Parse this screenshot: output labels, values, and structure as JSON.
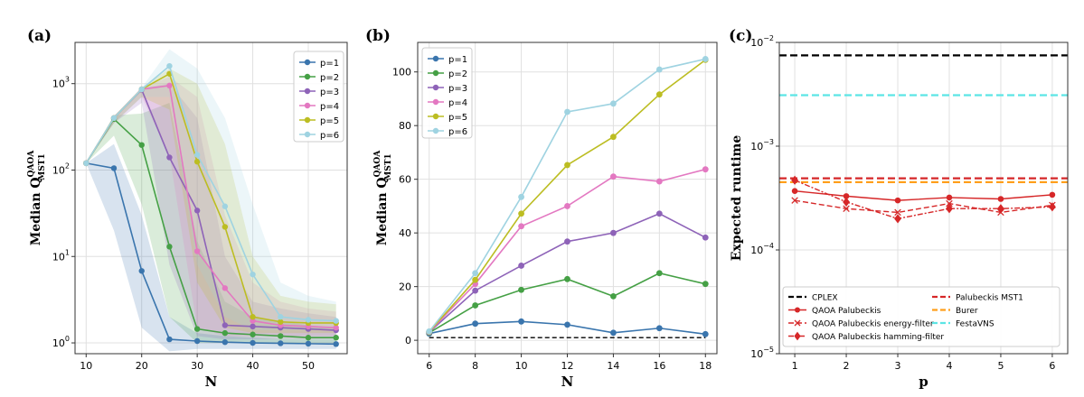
{
  "chart_data": [
    {
      "panel_label": "(a)",
      "type": "line",
      "xlabel": "N",
      "ylabel": "Median Q",
      "ylabel_sup": "QAOA",
      "ylabel_sub": "MST1",
      "yscale": "log",
      "xlim": [
        8,
        57
      ],
      "ylim": [
        0.75,
        3000
      ],
      "xticks": [
        10,
        20,
        30,
        40,
        50
      ],
      "yticks": [
        {
          "v": 1,
          "exp": "0"
        },
        {
          "v": 10,
          "exp": "1"
        },
        {
          "v": 100,
          "exp": "2"
        },
        {
          "v": 1000,
          "exp": "3"
        }
      ],
      "legend_position": "top-right",
      "series": [
        {
          "name": "p=1",
          "color": "#3a75ad",
          "x": [
            10,
            15,
            20,
            25,
            30,
            35,
            40,
            45,
            50,
            55
          ],
          "values": [
            120,
            105,
            6.8,
            1.1,
            1.05,
            1.02,
            1.0,
            0.99,
            0.98,
            0.97
          ],
          "band_low": [
            120,
            20,
            1.5,
            0.8,
            0.85,
            0.85,
            0.85,
            0.85,
            0.85,
            0.85
          ],
          "band_high": [
            120,
            200,
            30,
            2.0,
            1.3,
            1.2,
            1.15,
            1.1,
            1.1,
            1.1
          ]
        },
        {
          "name": "p=2",
          "color": "#45a045",
          "x": [
            10,
            15,
            20,
            25,
            30,
            35,
            40,
            45,
            50,
            55
          ],
          "values": [
            120,
            390,
            195,
            13,
            1.45,
            1.3,
            1.25,
            1.2,
            1.15,
            1.15
          ],
          "band_low": [
            120,
            250,
            40,
            2.0,
            1.0,
            1.0,
            1.0,
            1.0,
            1.0,
            1.0
          ],
          "band_high": [
            120,
            430,
            450,
            600,
            15,
            3,
            2.0,
            1.8,
            1.6,
            1.5
          ]
        },
        {
          "name": "p=3",
          "color": "#8e63b8",
          "x": [
            10,
            15,
            20,
            25,
            30,
            35,
            40,
            45,
            50,
            55
          ],
          "values": [
            120,
            400,
            850,
            140,
            34,
            1.6,
            1.55,
            1.5,
            1.45,
            1.4
          ],
          "band_low": [
            120,
            350,
            600,
            8,
            1.2,
            1.1,
            1.1,
            1.1,
            1.1,
            1.1
          ],
          "band_high": [
            120,
            420,
            900,
            1000,
            400,
            10,
            3,
            2.5,
            2.2,
            2.0
          ]
        },
        {
          "name": "p=4",
          "color": "#e378c1",
          "x": [
            10,
            15,
            20,
            25,
            30,
            35,
            40,
            45,
            50,
            55
          ],
          "values": [
            120,
            400,
            860,
            950,
            11.5,
            4.3,
            1.8,
            1.6,
            1.55,
            1.5
          ],
          "band_low": [
            120,
            350,
            700,
            150,
            1.5,
            1.2,
            1.2,
            1.2,
            1.2,
            1.2
          ],
          "band_high": [
            120,
            420,
            900,
            1200,
            700,
            30,
            5,
            3,
            2.5,
            2.3
          ]
        },
        {
          "name": "p=5",
          "color": "#bcbd22",
          "x": [
            10,
            15,
            20,
            25,
            30,
            35,
            40,
            45,
            50,
            55
          ],
          "values": [
            120,
            400,
            860,
            1300,
            125,
            22,
            2.0,
            1.75,
            1.7,
            1.7
          ],
          "band_low": [
            120,
            350,
            700,
            500,
            5,
            1.5,
            1.3,
            1.3,
            1.3,
            1.3
          ],
          "band_high": [
            120,
            420,
            900,
            1500,
            1000,
            200,
            10,
            3.5,
            3,
            2.8
          ]
        },
        {
          "name": "p=6",
          "color": "#9fd3e1",
          "x": [
            10,
            15,
            20,
            25,
            30,
            35,
            40,
            45,
            50,
            55
          ],
          "values": [
            120,
            400,
            860,
            1600,
            150,
            38,
            6.2,
            2.0,
            1.85,
            1.8
          ],
          "band_low": [
            120,
            350,
            700,
            700,
            8,
            2,
            1.4,
            1.4,
            1.4,
            1.4
          ],
          "band_high": [
            120,
            420,
            900,
            2500,
            1500,
            400,
            40,
            5,
            3.5,
            3
          ]
        }
      ]
    },
    {
      "panel_label": "(b)",
      "type": "line",
      "xlabel": "N",
      "ylabel": "Median Q",
      "ylabel_sup": "QAOA",
      "ylabel_sub": "MST1",
      "xlim": [
        5.5,
        18.5
      ],
      "ylim": [
        -5,
        111
      ],
      "xticks": [
        6,
        8,
        10,
        12,
        14,
        16,
        18
      ],
      "yticks": [
        0,
        20,
        40,
        60,
        80,
        100
      ],
      "reference_line": {
        "x": [
          6,
          18
        ],
        "y": 1
      },
      "legend_position": "top-left",
      "series": [
        {
          "name": "p=1",
          "color": "#3a75ad",
          "x": [
            6,
            8,
            10,
            12,
            14,
            16,
            18
          ],
          "values": [
            2.5,
            6.2,
            7.0,
            5.8,
            2.8,
            4.5,
            2.3
          ]
        },
        {
          "name": "p=2",
          "color": "#45a045",
          "x": [
            6,
            8,
            10,
            12,
            14,
            16,
            18
          ],
          "values": [
            2.8,
            13.0,
            18.8,
            22.8,
            16.4,
            25.0,
            21.0
          ]
        },
        {
          "name": "p=3",
          "color": "#8e63b8",
          "x": [
            6,
            8,
            10,
            12,
            14,
            16,
            18
          ],
          "values": [
            3.0,
            18.5,
            27.8,
            36.8,
            40.0,
            47.2,
            38.3
          ]
        },
        {
          "name": "p=4",
          "color": "#e378c1",
          "x": [
            6,
            8,
            10,
            12,
            14,
            16,
            18
          ],
          "values": [
            3.1,
            21.0,
            42.5,
            50.0,
            61.0,
            59.2,
            63.7
          ]
        },
        {
          "name": "p=5",
          "color": "#bcbd22",
          "x": [
            6,
            8,
            10,
            12,
            14,
            16,
            18
          ],
          "values": [
            3.2,
            22.5,
            47.2,
            65.3,
            75.8,
            91.6,
            104.5
          ]
        },
        {
          "name": "p=6",
          "color": "#9fd3e1",
          "x": [
            6,
            8,
            10,
            12,
            14,
            16,
            18
          ],
          "values": [
            3.3,
            25.0,
            53.4,
            85.1,
            88.2,
            100.9,
            104.8
          ]
        }
      ]
    },
    {
      "panel_label": "(c)",
      "type": "line",
      "xlabel": "p",
      "ylabel": "Expected runtime",
      "yscale": "log",
      "xlim": [
        0.7,
        6.3
      ],
      "ylim": [
        1e-05,
        0.01
      ],
      "xticks": [
        1,
        2,
        3,
        4,
        5,
        6
      ],
      "yticks": [
        {
          "v": 1e-05,
          "exp": "−5"
        },
        {
          "v": 0.0001,
          "exp": "−4"
        },
        {
          "v": 0.001,
          "exp": "−3"
        },
        {
          "v": 0.01,
          "exp": "−2"
        }
      ],
      "hlines": [
        {
          "name": "CPLEX",
          "color": "#000000",
          "y": 0.0075
        },
        {
          "name": "Palubeckis MST1",
          "color": "#d62728",
          "y": 0.00049
        },
        {
          "name": "Burer",
          "color": "#ff9f1c",
          "y": 0.00045
        },
        {
          "name": "FestaVNS",
          "color": "#5ce5e5",
          "y": 0.0031
        }
      ],
      "series": [
        {
          "name": "QAOA Palubeckis",
          "color": "#d62728",
          "marker": "circle",
          "x": [
            1,
            2,
            3,
            4,
            5,
            6
          ],
          "values": [
            0.00037,
            0.00033,
            0.0003,
            0.00032,
            0.00031,
            0.00034
          ]
        },
        {
          "name": "QAOA Palubeckis energy-filter",
          "color": "#d62728",
          "marker": "x",
          "x": [
            1,
            2,
            3,
            4,
            5,
            6
          ],
          "values": [
            0.0003,
            0.00025,
            0.00023,
            0.00028,
            0.00023,
            0.00027
          ]
        },
        {
          "name": "QAOA Palubeckis hamming-filter",
          "color": "#d62728",
          "marker": "diamond",
          "x": [
            1,
            2,
            3,
            4,
            5,
            6
          ],
          "values": [
            0.00047,
            0.00029,
            0.0002,
            0.00025,
            0.00025,
            0.00026
          ]
        }
      ],
      "legend": {
        "left": [
          "CPLEX",
          "QAOA Palubeckis",
          "QAOA Palubeckis energy-filter",
          "QAOA Palubeckis hamming-filter"
        ],
        "right": [
          "Palubeckis MST1",
          "Burer",
          "FestaVNS"
        ],
        "position": "bottom"
      }
    }
  ]
}
